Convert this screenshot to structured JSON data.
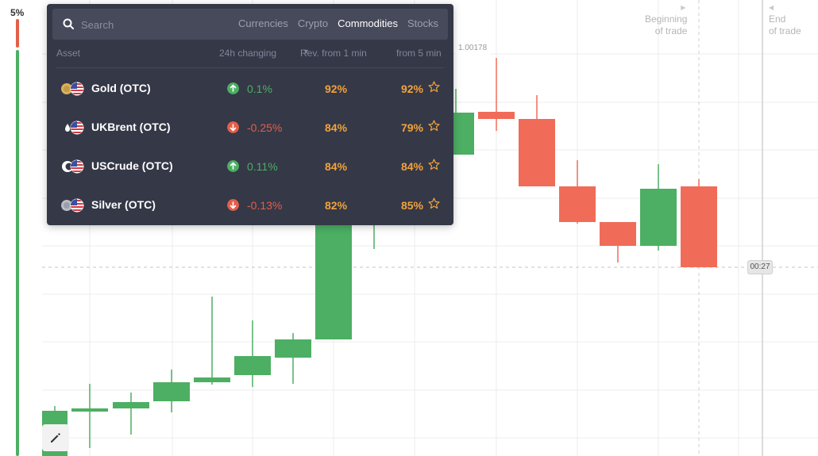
{
  "sentiment": {
    "label": "5%",
    "up_color": "#4caf63",
    "down_color": "#e25f4a"
  },
  "chart": {
    "price_label": "1.00178",
    "time_label": "00:27",
    "beginning_of_trade": [
      "Beginning",
      "of trade"
    ],
    "end_of_trade": [
      "End",
      "of trade"
    ],
    "up_color": "#4caf63",
    "down_color": "#f06c58"
  },
  "panel": {
    "search_placeholder": "Search",
    "tabs": [
      {
        "label": "Currencies",
        "active": false
      },
      {
        "label": "Crypto",
        "active": false
      },
      {
        "label": "Commodities",
        "active": true
      },
      {
        "label": "Stocks",
        "active": false
      }
    ],
    "columns": {
      "asset": "Asset",
      "change_24h": "24h changing",
      "rev_1min": "Rev. from 1 min",
      "rev_5min": "from 5 min"
    },
    "rows": [
      {
        "name": "Gold (OTC)",
        "direction": "up",
        "change": "0.1%",
        "rev_1min": "92%",
        "rev_5min": "92%",
        "icon": "gold-coin-usd-flag-icon"
      },
      {
        "name": "UKBrent (OTC)",
        "direction": "down",
        "change": "-0.25%",
        "rev_1min": "84%",
        "rev_5min": "79%",
        "icon": "oil-drop-usd-flag-icon"
      },
      {
        "name": "USCrude (OTC)",
        "direction": "up",
        "change": "0.11%",
        "rev_1min": "84%",
        "rev_5min": "84%",
        "icon": "crude-usd-flag-icon"
      },
      {
        "name": "Silver (OTC)",
        "direction": "down",
        "change": "-0.13%",
        "rev_1min": "82%",
        "rev_5min": "85%",
        "icon": "silver-coin-usd-flag-icon"
      }
    ],
    "up_color": "#4caf63",
    "down_color": "#e25f4a"
  }
}
